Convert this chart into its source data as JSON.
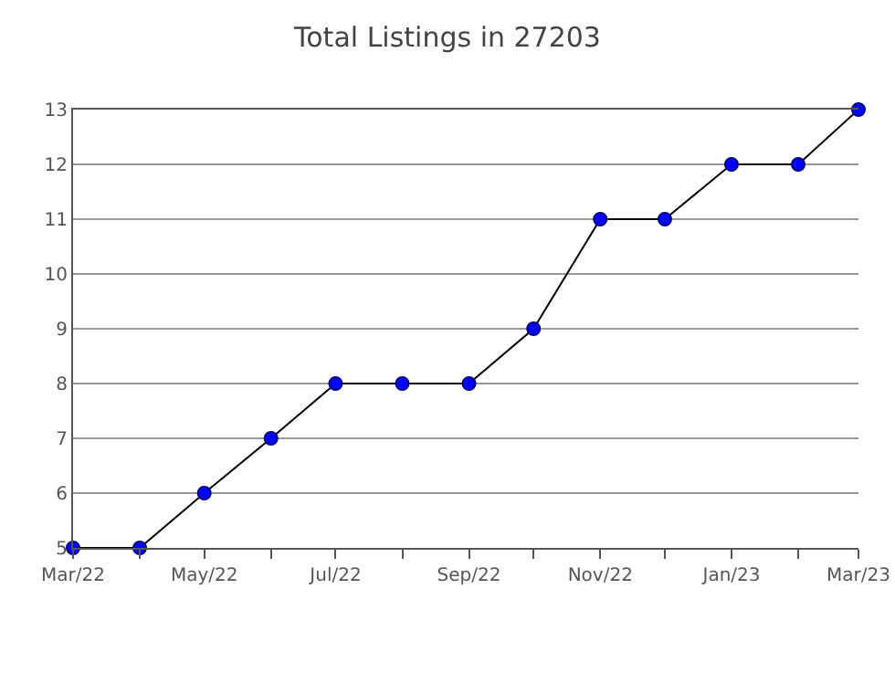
{
  "chart_data": {
    "type": "line",
    "title": "Total Listings in 27203",
    "x": [
      "2022-03",
      "2022-04",
      "2022-05",
      "2022-06",
      "2022-07",
      "2022-08",
      "2022-09",
      "2022-10",
      "2022-11",
      "2022-12",
      "2023-01",
      "2023-02",
      "2023-03"
    ],
    "series": [
      {
        "color": "#0000ff",
        "values": [
          5,
          5,
          6,
          7,
          8,
          8,
          8,
          9,
          11,
          11,
          12,
          12,
          13
        ]
      }
    ],
    "xlim": [
      "2022-03",
      "2023-03"
    ],
    "xticks": [
      {
        "value": "2022-03",
        "label": "Mar/22"
      },
      {
        "value": "2022-05",
        "label": "May/22"
      },
      {
        "value": "2022-07",
        "label": "Jul/22"
      },
      {
        "value": "2022-09",
        "label": "Sep/22"
      },
      {
        "value": "2022-11",
        "label": "Nov/22"
      },
      {
        "value": "2023-01",
        "label": "Jan/23"
      },
      {
        "value": "2023-03",
        "label": "Mar/23"
      }
    ],
    "ylim": [
      5,
      13
    ],
    "yticks": [
      5,
      6,
      7,
      8,
      9,
      10,
      11,
      12,
      13
    ],
    "grid": "y",
    "marker": "circle",
    "line_style": "solid"
  }
}
